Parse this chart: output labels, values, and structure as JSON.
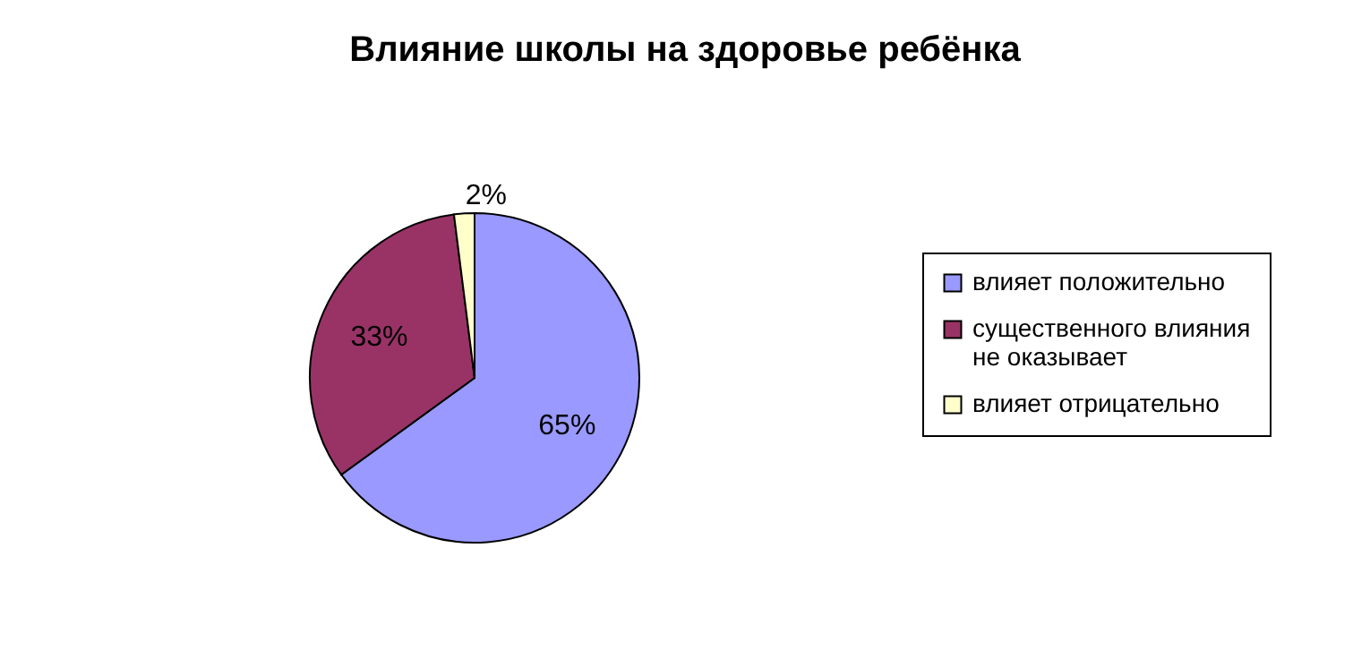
{
  "chart_data": {
    "type": "pie",
    "title": "Влияние школы на здоровье ребёнка",
    "categories": [
      "влияет положительно",
      "существенного влияния не оказывает",
      "влияет отрицательно"
    ],
    "values": [
      65,
      33,
      2
    ],
    "colors": [
      "#9999ff",
      "#993366",
      "#ffffcc"
    ],
    "value_labels": [
      "65%",
      "33%",
      "2%"
    ],
    "legend": "right"
  }
}
